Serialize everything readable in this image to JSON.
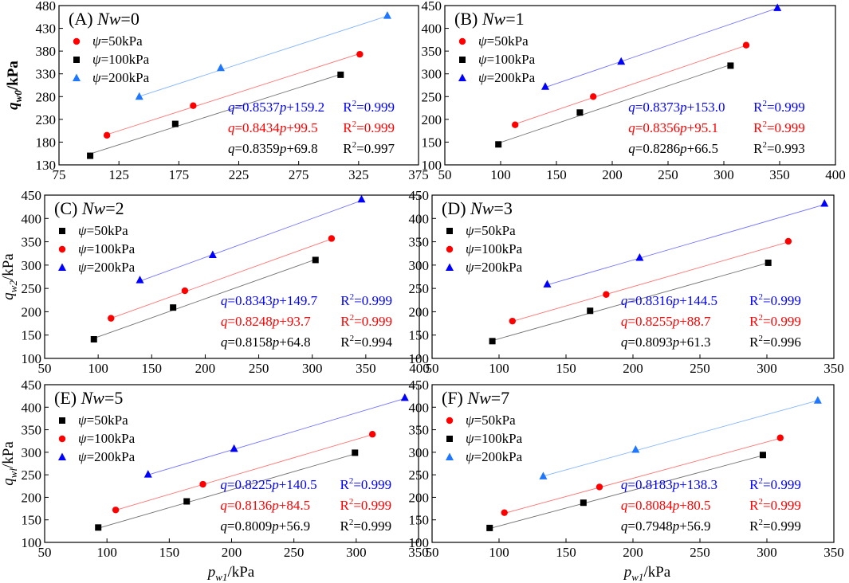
{
  "figure": {
    "xlabel_main": "p",
    "xlabel_sub": "w1",
    "xlabel_unit": "/kPa",
    "colors": {
      "black": "#000000",
      "red": "#ff0000",
      "blue": "#0000ff",
      "lightblue": "#1f77ff"
    }
  },
  "chart_data": [
    {
      "type": "scatter",
      "title_prefix": "(A)",
      "title_var": "Nw",
      "title_suffix": "=0",
      "ylabel": {
        "main": "q",
        "sub": "w0",
        "unit": "/kPa"
      },
      "xlim": [
        75,
        375
      ],
      "ylim": [
        130,
        480
      ],
      "xticks": [
        75,
        125,
        175,
        225,
        275,
        325,
        375
      ],
      "yticks": [
        130,
        180,
        230,
        280,
        330,
        380,
        430,
        480
      ],
      "series": [
        {
          "name": "ψ=50kPa",
          "marker": "circle",
          "color": "#ff0000",
          "x": [
            115,
            187,
            326
          ],
          "y": [
            195,
            260,
            373
          ],
          "slope": 0.8434,
          "intercept": 99.5
        },
        {
          "name": "ψ=100kPa",
          "marker": "square",
          "color": "#000000",
          "x": [
            101,
            172,
            310
          ],
          "y": [
            150,
            220,
            328
          ],
          "slope": 0.8359,
          "intercept": 69.8
        },
        {
          "name": "ψ=200kPa",
          "marker": "triangle",
          "color": "#1f77ff",
          "x": [
            142,
            210,
            349
          ],
          "y": [
            280,
            343,
            458
          ],
          "slope": 0.8537,
          "intercept": 159.2
        }
      ],
      "fits": [
        {
          "eq_q": "q",
          "eq_mid": "=0.8537",
          "eq_p": "p",
          "eq_tail": "+159.2",
          "r2": "R",
          "r2_sup": "2",
          "r2_val": "=0.999",
          "color": "#0000ff"
        },
        {
          "eq_q": "q",
          "eq_mid": "=0.8434",
          "eq_p": "p",
          "eq_tail": "+99.5",
          "r2": "R",
          "r2_sup": "2",
          "r2_val": "=0.999",
          "color": "#ff0000"
        },
        {
          "eq_q": "q",
          "eq_mid": "=0.8359",
          "eq_p": "p",
          "eq_tail": "+69.8",
          "r2": "R",
          "r2_sup": "2",
          "r2_val": "=0.997",
          "color": "#000000"
        }
      ]
    },
    {
      "type": "scatter",
      "title_prefix": "(B)",
      "title_var": "Nw",
      "title_suffix": "=1",
      "ylabel": null,
      "xlim": [
        50,
        400
      ],
      "ylim": [
        100,
        450
      ],
      "xticks": [
        50,
        100,
        150,
        200,
        250,
        300,
        350,
        400
      ],
      "yticks": [
        100,
        150,
        200,
        250,
        300,
        350,
        400,
        450
      ],
      "series": [
        {
          "name": "ψ=50kPa",
          "marker": "circle",
          "color": "#ff0000",
          "x": [
            113,
            183,
            320
          ],
          "y": [
            188,
            250,
            363
          ],
          "slope": 0.8356,
          "intercept": 95.1
        },
        {
          "name": "ψ=100kPa",
          "marker": "square",
          "color": "#000000",
          "x": [
            98,
            171,
            306
          ],
          "y": [
            145,
            215,
            318
          ],
          "slope": 0.8286,
          "intercept": 66.5
        },
        {
          "name": "ψ=200kPa",
          "marker": "triangle",
          "color": "#0000ff",
          "x": [
            140,
            208,
            348
          ],
          "y": [
            272,
            327,
            445
          ],
          "slope": 0.8373,
          "intercept": 153.0
        }
      ],
      "fits": [
        {
          "eq_q": "q",
          "eq_mid": "=0.8373",
          "eq_p": "p",
          "eq_tail": "+153.0",
          "r2": "R",
          "r2_sup": "2",
          "r2_val": "=0.999",
          "color": "#0000ff"
        },
        {
          "eq_q": "q",
          "eq_mid": "=0.8356",
          "eq_p": "p",
          "eq_tail": "+95.1",
          "r2": "R",
          "r2_sup": "2",
          "r2_val": "=0.999",
          "color": "#ff0000"
        },
        {
          "eq_q": "q",
          "eq_mid": "=0.8286",
          "eq_p": "p",
          "eq_tail": "+66.5",
          "r2": "R",
          "r2_sup": "2",
          "r2_val": "=0.993",
          "color": "#000000"
        }
      ]
    },
    {
      "type": "scatter",
      "title_prefix": "(C)",
      "title_var": "Nw",
      "title_suffix": "=2",
      "ylabel": {
        "main": "q",
        "sub": "w2",
        "unit": "/kPa"
      },
      "xlim": [
        50,
        400
      ],
      "ylim": [
        100,
        450
      ],
      "xticks": [
        50,
        100,
        150,
        200,
        250,
        300,
        350,
        400
      ],
      "yticks": [
        100,
        150,
        200,
        250,
        300,
        350,
        400,
        450
      ],
      "series": [
        {
          "name": "ψ=50kPa",
          "marker": "square",
          "color": "#000000",
          "x": [
            96,
            170,
            303
          ],
          "y": [
            141,
            209,
            311
          ],
          "slope": 0.8158,
          "intercept": 64.8
        },
        {
          "name": "ψ=100kPa",
          "marker": "circle",
          "color": "#ff0000",
          "x": [
            112,
            181,
            318
          ],
          "y": [
            186,
            245,
            357
          ],
          "slope": 0.8248,
          "intercept": 93.7
        },
        {
          "name": "ψ=200kPa",
          "marker": "triangle",
          "color": "#0000ff",
          "x": [
            139,
            207,
            346
          ],
          "y": [
            268,
            322,
            441
          ],
          "slope": 0.8343,
          "intercept": 149.7
        }
      ],
      "fits": [
        {
          "eq_q": "q",
          "eq_mid": "=0.8343",
          "eq_p": "p",
          "eq_tail": "+149.7",
          "r2": "R",
          "r2_sup": "2",
          "r2_val": "=0.999",
          "color": "#0000ff"
        },
        {
          "eq_q": "q",
          "eq_mid": "=0.8248",
          "eq_p": "p",
          "eq_tail": "+93.7",
          "r2": "R",
          "r2_sup": "2",
          "r2_val": "=0.999",
          "color": "#ff0000"
        },
        {
          "eq_q": "q",
          "eq_mid": "=0.8158",
          "eq_p": "p",
          "eq_tail": "+64.8",
          "r2": "R",
          "r2_sup": "2",
          "r2_val": "=0.994",
          "color": "#000000"
        }
      ]
    },
    {
      "type": "scatter",
      "title_prefix": "(D)",
      "title_var": "Nw",
      "title_suffix": "=3",
      "ylabel": null,
      "xlim": [
        50,
        350
      ],
      "ylim": [
        100,
        450
      ],
      "xticks": [
        50,
        100,
        150,
        200,
        250,
        300,
        350
      ],
      "yticks": [
        100,
        150,
        200,
        250,
        300,
        350,
        400,
        450
      ],
      "series": [
        {
          "name": "ψ=50kPa",
          "marker": "square",
          "color": "#000000",
          "x": [
            95,
            168,
            301
          ],
          "y": [
            137,
            202,
            305
          ],
          "slope": 0.8093,
          "intercept": 61.3
        },
        {
          "name": "ψ=100kPa",
          "marker": "circle",
          "color": "#ff0000",
          "x": [
            110,
            180,
            316
          ],
          "y": [
            180,
            237,
            351
          ],
          "slope": 0.8255,
          "intercept": 88.7
        },
        {
          "name": "ψ=200kPa",
          "marker": "triangle",
          "color": "#0000ff",
          "x": [
            136,
            205,
            343
          ],
          "y": [
            259,
            316,
            432
          ],
          "slope": 0.8316,
          "intercept": 144.5
        }
      ],
      "fits": [
        {
          "eq_q": "q",
          "eq_mid": "=0.8316",
          "eq_p": "p",
          "eq_tail": "+144.5",
          "r2": "R",
          "r2_sup": "2",
          "r2_val": "=0.999",
          "color": "#0000ff"
        },
        {
          "eq_q": "q",
          "eq_mid": "=0.8255",
          "eq_p": "p",
          "eq_tail": "+88.7",
          "r2": "R",
          "r2_sup": "2",
          "r2_val": "=0.999",
          "color": "#ff0000"
        },
        {
          "eq_q": "q",
          "eq_mid": "=0.8093",
          "eq_p": "p",
          "eq_tail": "+61.3",
          "r2": "R",
          "r2_sup": "2",
          "r2_val": "=0.996",
          "color": "#000000"
        }
      ]
    },
    {
      "type": "scatter",
      "title_prefix": "(E)",
      "title_var": "Nw",
      "title_suffix": "=5",
      "ylabel": {
        "main": "q",
        "sub": "wl",
        "unit": "/kPa"
      },
      "xlim": [
        50,
        350
      ],
      "ylim": [
        100,
        450
      ],
      "xticks": [
        50,
        100,
        150,
        200,
        250,
        300,
        350
      ],
      "yticks": [
        100,
        150,
        200,
        250,
        300,
        350,
        400,
        450
      ],
      "series": [
        {
          "name": "ψ=50kPa",
          "marker": "square",
          "color": "#000000",
          "x": [
            93,
            164,
            299
          ],
          "y": [
            133,
            191,
            299
          ],
          "slope": 0.8009,
          "intercept": 56.9
        },
        {
          "name": "ψ=100kPa",
          "marker": "circle",
          "color": "#ff0000",
          "x": [
            107,
            177,
            313
          ],
          "y": [
            172,
            229,
            340
          ],
          "slope": 0.8136,
          "intercept": 84.5
        },
        {
          "name": "ψ=200kPa",
          "marker": "triangle",
          "color": "#0000ff",
          "x": [
            133,
            202,
            339
          ],
          "y": [
            251,
            308,
            421
          ],
          "slope": 0.8225,
          "intercept": 140.5
        }
      ],
      "fits": [
        {
          "eq_q": "q",
          "eq_mid": "=0.8225",
          "eq_p": "p",
          "eq_tail": "+140.5",
          "r2": "R",
          "r2_sup": "2",
          "r2_val": "=0.999",
          "color": "#0000ff"
        },
        {
          "eq_q": "q",
          "eq_mid": "=0.8136",
          "eq_p": "p",
          "eq_tail": "+84.5",
          "r2": "R",
          "r2_sup": "2",
          "r2_val": "=0.999",
          "color": "#ff0000"
        },
        {
          "eq_q": "q",
          "eq_mid": "=0.8009",
          "eq_p": "p",
          "eq_tail": "+56.9",
          "r2": "R",
          "r2_sup": "2",
          "r2_val": "=0.999",
          "color": "#000000"
        }
      ]
    },
    {
      "type": "scatter",
      "title_prefix": "(F)",
      "title_var": "Nw",
      "title_suffix": "=7",
      "ylabel": null,
      "xlim": [
        50,
        350
      ],
      "ylim": [
        100,
        450
      ],
      "xticks": [
        50,
        100,
        150,
        200,
        250,
        300,
        350
      ],
      "yticks": [
        100,
        150,
        200,
        250,
        300,
        350,
        400,
        450
      ],
      "series": [
        {
          "name": "ψ=50kPa",
          "marker": "circle",
          "color": "#ff0000",
          "x": [
            104,
            175,
            310
          ],
          "y": [
            166,
            223,
            332
          ],
          "slope": 0.8084,
          "intercept": 80.5
        },
        {
          "name": "ψ=100kPa",
          "marker": "square",
          "color": "#000000",
          "x": [
            93,
            163,
            297
          ],
          "y": [
            132,
            188,
            294
          ],
          "slope": 0.7948,
          "intercept": 56.9
        },
        {
          "name": "ψ=200kPa",
          "marker": "triangle",
          "color": "#1f77ff",
          "x": [
            133,
            202,
            338
          ],
          "y": [
            247,
            306,
            415
          ],
          "slope": 0.8183,
          "intercept": 138.3
        }
      ],
      "fits": [
        {
          "eq_q": "q",
          "eq_mid": "=0.8183",
          "eq_p": "p",
          "eq_tail": "+138.3",
          "r2": "R",
          "r2_sup": "2",
          "r2_val": "=0.999",
          "color": "#0000ff"
        },
        {
          "eq_q": "q",
          "eq_mid": "=0.8084",
          "eq_p": "p",
          "eq_tail": "+80.5",
          "r2": "R",
          "r2_sup": "2",
          "r2_val": "=0.999",
          "color": "#ff0000"
        },
        {
          "eq_q": "q",
          "eq_mid": "=0.7948",
          "eq_p": "p",
          "eq_tail": "+56.9",
          "r2": "R",
          "r2_sup": "2",
          "r2_val": "=0.999",
          "color": "#000000"
        }
      ]
    }
  ]
}
